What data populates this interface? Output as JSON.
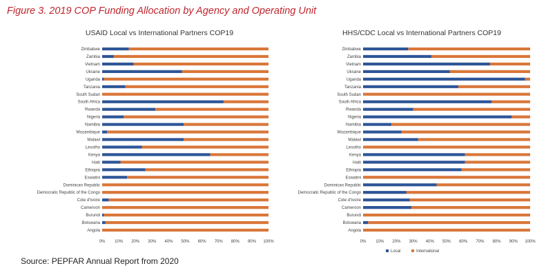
{
  "figure_title": "Figure 3. 2019 COP Funding Allocation by Agency and Operating Unit",
  "source": "Source: PEPFAR Annual Report from 2020",
  "colors": {
    "local": "#2e5597",
    "international": "#d9773a",
    "title": "#c0252c"
  },
  "chart_data": [
    {
      "type": "bar",
      "orientation": "horizontal",
      "stacked": true,
      "percent": true,
      "title": "USAID Local vs International Partners COP19",
      "categories": [
        "Zimbabwe",
        "Zambia",
        "Vietnam",
        "Ukraine",
        "Uganda",
        "Tanzania",
        "South Sudan",
        "South Africa",
        "Rwanda",
        "Nigeria",
        "Namibia",
        "Mozambique",
        "Malawi",
        "Lesotho",
        "Kenya",
        "Haiti",
        "Ethiopia",
        "Eswatini",
        "Dominican Republic",
        "Democratic Republic of the Congo",
        "Cote d'Ivoire",
        "Cameroon",
        "Burundi",
        "Botswana",
        "Angola"
      ],
      "series": [
        {
          "name": "Local",
          "values": [
            16,
            7,
            19,
            48,
            1,
            14,
            0,
            73,
            32,
            13,
            49,
            3,
            49,
            24,
            65,
            11,
            26,
            15,
            0,
            0,
            4,
            0,
            1,
            2,
            0
          ]
        },
        {
          "name": "International",
          "values": [
            84,
            93,
            81,
            52,
            99,
            86,
            100,
            27,
            68,
            87,
            51,
            97,
            51,
            76,
            35,
            89,
            74,
            85,
            100,
            100,
            96,
            100,
            99,
            98,
            100
          ]
        }
      ],
      "xlim": [
        0,
        100
      ],
      "xticks": [
        "0%",
        "10%",
        "20%",
        "30%",
        "40%",
        "50%",
        "60%",
        "70%",
        "80%",
        "90%",
        "100%"
      ],
      "legend": "none"
    },
    {
      "type": "bar",
      "orientation": "horizontal",
      "stacked": true,
      "percent": true,
      "title": "HHS/CDC Local vs International Partners COP19",
      "categories": [
        "Zimbabwe",
        "Zambia",
        "Vietnam",
        "Ukraine",
        "Uganda",
        "Tanzania",
        "South Sudan",
        "South Africa",
        "Rwanda",
        "Nigeria",
        "Namibia",
        "Mozambique",
        "Malawi",
        "Lesotho",
        "Kenya",
        "Haiti",
        "Ethiopia",
        "Eswatini",
        "Dominican Republic",
        "Democratic Republic of the Congo",
        "Cote d'Ivoire",
        "Cameroon",
        "Burundi",
        "Botswana",
        "Angola"
      ],
      "series": [
        {
          "name": "Local",
          "values": [
            27,
            41,
            76,
            52,
            97,
            57,
            0,
            77,
            30,
            89,
            17,
            23,
            33,
            0,
            61,
            61,
            59,
            0,
            44,
            26,
            28,
            29,
            0,
            3,
            0
          ]
        },
        {
          "name": "International",
          "values": [
            73,
            59,
            24,
            48,
            3,
            43,
            100,
            23,
            70,
            11,
            83,
            77,
            67,
            100,
            39,
            39,
            41,
            100,
            56,
            74,
            72,
            71,
            100,
            97,
            100
          ]
        }
      ],
      "xlim": [
        0,
        100
      ],
      "xticks": [
        "0%",
        "10%",
        "20%",
        "30%",
        "40%",
        "50%",
        "60%",
        "70%",
        "80%",
        "90%",
        "100%"
      ],
      "legend": "bottom"
    }
  ]
}
